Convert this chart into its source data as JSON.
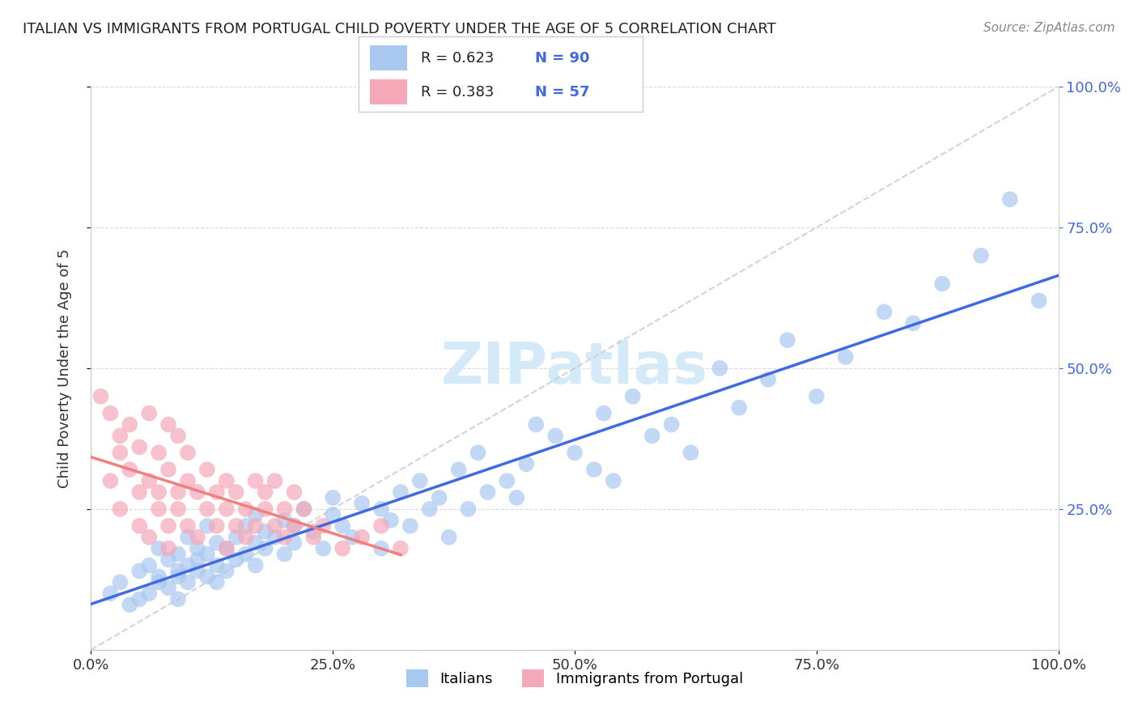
{
  "title": "ITALIAN VS IMMIGRANTS FROM PORTUGAL CHILD POVERTY UNDER THE AGE OF 5 CORRELATION CHART",
  "source": "Source: ZipAtlas.com",
  "ylabel": "Child Poverty Under the Age of 5",
  "xlim": [
    0,
    1.0
  ],
  "ylim": [
    0,
    1.0
  ],
  "xtick_labels": [
    "0.0%",
    "25.0%",
    "50.0%",
    "75.0%",
    "100.0%"
  ],
  "xtick_vals": [
    0.0,
    0.25,
    0.5,
    0.75,
    1.0
  ],
  "ytick_vals_right": [
    0.25,
    0.5,
    0.75,
    1.0
  ],
  "ytick_labels_right": [
    "25.0%",
    "50.0%",
    "75.0%",
    "100.0%"
  ],
  "legend_R1": "R = 0.623",
  "legend_N1": "N = 90",
  "legend_R2": "R = 0.383",
  "legend_N2": "N = 57",
  "legend_label1": "Italians",
  "legend_label2": "Immigrants from Portugal",
  "color_italian": "#a8c8f0",
  "color_portugal": "#f4a8b8",
  "color_line_italian": "#4169e1",
  "color_line_portugal": "#f08080",
  "color_diag": "#c8c8d8",
  "color_R_N": "#4169e1",
  "background_color": "#ffffff",
  "italian_x": [
    0.02,
    0.03,
    0.04,
    0.05,
    0.05,
    0.06,
    0.06,
    0.07,
    0.07,
    0.07,
    0.08,
    0.08,
    0.09,
    0.09,
    0.09,
    0.09,
    0.1,
    0.1,
    0.1,
    0.11,
    0.11,
    0.11,
    0.12,
    0.12,
    0.12,
    0.13,
    0.13,
    0.13,
    0.14,
    0.14,
    0.15,
    0.15,
    0.16,
    0.16,
    0.17,
    0.17,
    0.17,
    0.18,
    0.18,
    0.19,
    0.2,
    0.2,
    0.21,
    0.21,
    0.22,
    0.23,
    0.24,
    0.25,
    0.25,
    0.26,
    0.27,
    0.28,
    0.3,
    0.3,
    0.31,
    0.32,
    0.33,
    0.34,
    0.35,
    0.36,
    0.37,
    0.38,
    0.39,
    0.4,
    0.41,
    0.43,
    0.44,
    0.45,
    0.46,
    0.48,
    0.5,
    0.52,
    0.53,
    0.54,
    0.56,
    0.58,
    0.6,
    0.62,
    0.65,
    0.67,
    0.7,
    0.72,
    0.75,
    0.78,
    0.82,
    0.85,
    0.88,
    0.92,
    0.95,
    0.98
  ],
  "italian_y": [
    0.1,
    0.12,
    0.08,
    0.09,
    0.14,
    0.1,
    0.15,
    0.12,
    0.13,
    0.18,
    0.11,
    0.16,
    0.14,
    0.09,
    0.17,
    0.13,
    0.15,
    0.12,
    0.2,
    0.14,
    0.16,
    0.18,
    0.13,
    0.17,
    0.22,
    0.15,
    0.19,
    0.12,
    0.14,
    0.18,
    0.16,
    0.2,
    0.17,
    0.22,
    0.19,
    0.15,
    0.24,
    0.18,
    0.21,
    0.2,
    0.17,
    0.23,
    0.22,
    0.19,
    0.25,
    0.21,
    0.18,
    0.24,
    0.27,
    0.22,
    0.2,
    0.26,
    0.18,
    0.25,
    0.23,
    0.28,
    0.22,
    0.3,
    0.25,
    0.27,
    0.2,
    0.32,
    0.25,
    0.35,
    0.28,
    0.3,
    0.27,
    0.33,
    0.4,
    0.38,
    0.35,
    0.32,
    0.42,
    0.3,
    0.45,
    0.38,
    0.4,
    0.35,
    0.5,
    0.43,
    0.48,
    0.55,
    0.45,
    0.52,
    0.6,
    0.58,
    0.65,
    0.7,
    0.8,
    0.62
  ],
  "portugal_x": [
    0.01,
    0.02,
    0.02,
    0.03,
    0.03,
    0.03,
    0.04,
    0.04,
    0.05,
    0.05,
    0.05,
    0.06,
    0.06,
    0.06,
    0.07,
    0.07,
    0.07,
    0.08,
    0.08,
    0.08,
    0.08,
    0.09,
    0.09,
    0.09,
    0.1,
    0.1,
    0.1,
    0.11,
    0.11,
    0.12,
    0.12,
    0.13,
    0.13,
    0.14,
    0.14,
    0.14,
    0.15,
    0.15,
    0.16,
    0.16,
    0.17,
    0.17,
    0.18,
    0.18,
    0.19,
    0.19,
    0.2,
    0.2,
    0.21,
    0.21,
    0.22,
    0.23,
    0.24,
    0.26,
    0.28,
    0.3,
    0.32
  ],
  "portugal_y": [
    0.45,
    0.3,
    0.42,
    0.38,
    0.25,
    0.35,
    0.4,
    0.32,
    0.28,
    0.22,
    0.36,
    0.3,
    0.42,
    0.2,
    0.25,
    0.35,
    0.28,
    0.22,
    0.32,
    0.4,
    0.18,
    0.28,
    0.38,
    0.25,
    0.22,
    0.3,
    0.35,
    0.28,
    0.2,
    0.25,
    0.32,
    0.22,
    0.28,
    0.25,
    0.3,
    0.18,
    0.22,
    0.28,
    0.25,
    0.2,
    0.3,
    0.22,
    0.25,
    0.28,
    0.22,
    0.3,
    0.25,
    0.2,
    0.28,
    0.22,
    0.25,
    0.2,
    0.22,
    0.18,
    0.2,
    0.22,
    0.18
  ]
}
